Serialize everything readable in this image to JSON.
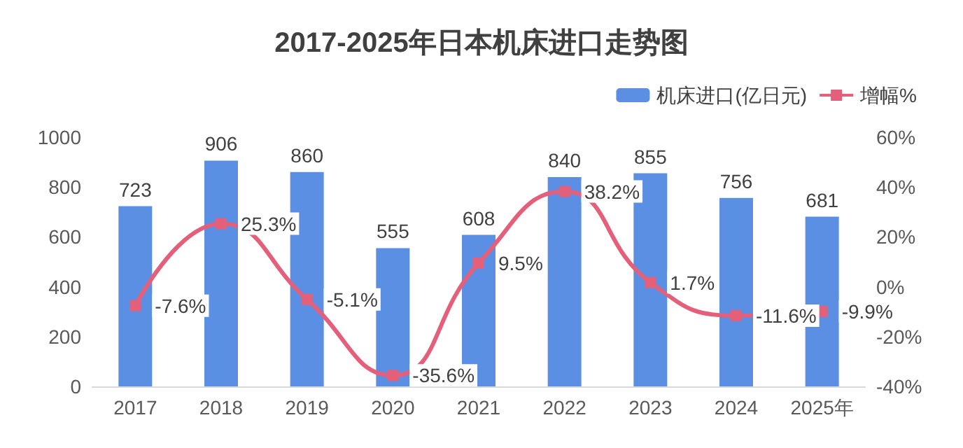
{
  "chart_data": {
    "type": "bar",
    "title": "2017-2025年日本机床进口走势图",
    "categories": [
      "2017",
      "2018",
      "2019",
      "2020",
      "2021",
      "2022",
      "2023",
      "2024",
      "2025年"
    ],
    "series": [
      {
        "name": "机床进口(亿日元)",
        "color": "#5b8fe3",
        "values": [
          723,
          906,
          860,
          555,
          608,
          840,
          855,
          756,
          681
        ],
        "value_labels": [
          "723",
          "906",
          "860",
          "555",
          "608",
          "840",
          "855",
          "756",
          "681"
        ]
      },
      {
        "name": "增幅%",
        "type": "line",
        "axis": "y2",
        "color": "#e4607a",
        "marker": "square",
        "values": [
          -7.6,
          25.3,
          -5.1,
          -35.6,
          9.5,
          38.2,
          1.7,
          -11.6,
          -9.9
        ],
        "value_labels": [
          "-7.6%",
          "25.3%",
          "-5.1%",
          "-35.6%",
          "9.5%",
          "38.2%",
          "1.7%",
          "-11.6%",
          "-9.9%"
        ]
      }
    ],
    "ylim": [
      0,
      1000
    ],
    "yticks": [
      0,
      200,
      400,
      600,
      800,
      1000
    ],
    "y2lim": [
      -40,
      60
    ],
    "y2ticks": [
      {
        "value": -40,
        "label": "-40%"
      },
      {
        "value": -20,
        "label": "-20%"
      },
      {
        "value": 0,
        "label": "0%"
      },
      {
        "value": 20,
        "label": "20%"
      },
      {
        "value": 40,
        "label": "40%"
      },
      {
        "value": 60,
        "label": "60%"
      }
    ],
    "legend": "top right"
  }
}
